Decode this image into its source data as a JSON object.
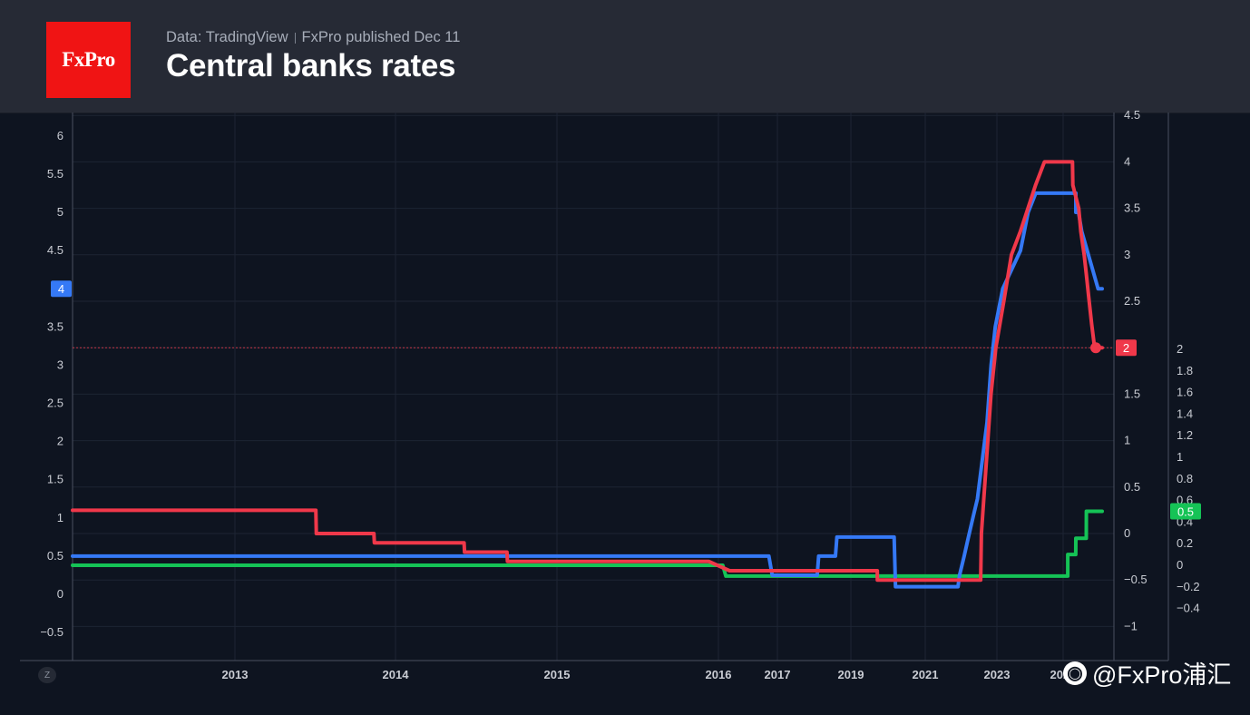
{
  "header": {
    "logo_text": "FxPro",
    "source_text": "Data: TradingView",
    "published_text": "FxPro published Dec 11",
    "title": "Central banks rates"
  },
  "watermark": {
    "icon": "weibo-icon",
    "text": "@FxPro浦汇"
  },
  "z_button": "Z",
  "colors": {
    "blue": "#3579f6",
    "red": "#f0384a",
    "green": "#15c356",
    "grid": "#1d2433",
    "axis_text": "#c9ccd3"
  },
  "chart_data": {
    "type": "line",
    "title": "Central banks rates",
    "x_tick_labels": [
      "2013",
      "2014",
      "2015",
      "2016",
      "2017",
      "2019",
      "2021",
      "2023",
      "2024"
    ],
    "axes": {
      "left": {
        "ticks": [
          "6",
          "5.5",
          "5",
          "4.5",
          "4",
          "3.5",
          "3",
          "2.5",
          "2",
          "1.5",
          "1",
          "0.5",
          "0",
          "−0.5"
        ],
        "ylim": [
          -0.5,
          6
        ]
      },
      "right": {
        "ticks": [
          "4.5",
          "4",
          "3.5",
          "3",
          "2.5",
          "2",
          "1.5",
          "1",
          "0.5",
          "0",
          "−0.5",
          "−1"
        ],
        "ylim": [
          -1,
          4.5
        ]
      },
      "far_right": {
        "ticks": [
          "2",
          "1.8",
          "1.6",
          "1.4",
          "1.2",
          "1",
          "0.8",
          "0.6",
          "0.4",
          "0.2",
          "0",
          "−0.2",
          "−0.4"
        ],
        "ylim": [
          -0.4,
          2
        ]
      }
    },
    "series": [
      {
        "axis": "left",
        "color": "#3579f6",
        "last_value_label": "4",
        "points": [
          [
            "2012-04-01",
            0.5
          ],
          [
            "2016-11-09",
            0.5
          ],
          [
            "2016-11-30",
            0.25
          ],
          [
            "2018-02-01",
            0.25
          ],
          [
            "2018-02-15",
            0.5
          ],
          [
            "2018-08-01",
            0.5
          ],
          [
            "2018-08-15",
            0.75
          ],
          [
            "2020-03-01",
            0.75
          ],
          [
            "2020-03-15",
            0.1
          ],
          [
            "2021-12-01",
            0.1
          ],
          [
            "2021-12-16",
            0.25
          ],
          [
            "2022-02-01",
            0.5
          ],
          [
            "2022-03-17",
            0.75
          ],
          [
            "2022-05-01",
            1.0
          ],
          [
            "2022-06-16",
            1.25
          ],
          [
            "2022-08-04",
            1.75
          ],
          [
            "2022-09-22",
            2.25
          ],
          [
            "2022-11-03",
            3.0
          ],
          [
            "2022-12-15",
            3.5
          ],
          [
            "2023-02-02",
            4.0
          ],
          [
            "2023-03-23",
            4.25
          ],
          [
            "2023-05-11",
            4.5
          ],
          [
            "2023-06-22",
            5.0
          ],
          [
            "2023-08-03",
            5.25
          ],
          [
            "2024-07-31",
            5.25
          ],
          [
            "2024-08-01",
            5.0
          ],
          [
            "2024-09-15",
            5.0
          ],
          [
            "2024-11-07",
            4.75
          ],
          [
            "2025-02-06",
            4.5
          ],
          [
            "2025-05-08",
            4.25
          ],
          [
            "2025-08-07",
            4.0
          ],
          [
            "2025-10-15",
            4.0
          ]
        ]
      },
      {
        "axis": "right",
        "color": "#f0384a",
        "last_value_label": "2",
        "points": [
          [
            "2012-04-01",
            0.25
          ],
          [
            "2013-07-04",
            0.25
          ],
          [
            "2013-07-05",
            0.0
          ],
          [
            "2013-11-13",
            0.0
          ],
          [
            "2013-11-14",
            -0.1
          ],
          [
            "2014-06-05",
            -0.1
          ],
          [
            "2014-06-06",
            -0.2
          ],
          [
            "2014-09-10",
            -0.2
          ],
          [
            "2014-09-11",
            -0.3
          ],
          [
            "2015-09-01",
            -0.3
          ],
          [
            "2015-12-09",
            -0.3
          ],
          [
            "2015-12-10",
            -0.3
          ],
          [
            "2016-03-10",
            -0.4
          ],
          [
            "2019-09-17",
            -0.4
          ],
          [
            "2019-09-18",
            -0.5
          ],
          [
            "2022-07-20",
            -0.5
          ],
          [
            "2022-07-27",
            0.0
          ],
          [
            "2022-09-14",
            0.75
          ],
          [
            "2022-11-02",
            1.5
          ],
          [
            "2022-12-21",
            2.0
          ],
          [
            "2023-02-08",
            2.5
          ],
          [
            "2023-03-22",
            3.0
          ],
          [
            "2023-05-10",
            3.25
          ],
          [
            "2023-06-21",
            3.5
          ],
          [
            "2023-08-02",
            3.75
          ],
          [
            "2023-09-20",
            4.0
          ],
          [
            "2024-06-05",
            4.0
          ],
          [
            "2024-06-12",
            3.75
          ],
          [
            "2024-09-18",
            3.5
          ],
          [
            "2024-10-23",
            3.25
          ],
          [
            "2024-12-18",
            3.0
          ],
          [
            "2025-01-30",
            2.75
          ],
          [
            "2025-03-12",
            2.5
          ],
          [
            "2025-04-23",
            2.25
          ],
          [
            "2025-06-11",
            2.0
          ],
          [
            "2025-10-15",
            2.0
          ]
        ]
      },
      {
        "axis": "far_right",
        "color": "#15c356",
        "last_value_label": "0.5",
        "points": [
          [
            "2012-04-01",
            0.0
          ],
          [
            "2016-01-28",
            0.0
          ],
          [
            "2016-02-16",
            -0.1
          ],
          [
            "2024-03-18",
            -0.1
          ],
          [
            "2024-03-19",
            0.1
          ],
          [
            "2024-07-30",
            0.1
          ],
          [
            "2024-07-31",
            0.25
          ],
          [
            "2025-01-23",
            0.25
          ],
          [
            "2025-01-24",
            0.5
          ],
          [
            "2025-10-15",
            0.5
          ]
        ]
      }
    ],
    "reference_line": {
      "axis": "right",
      "value": 2
    }
  }
}
